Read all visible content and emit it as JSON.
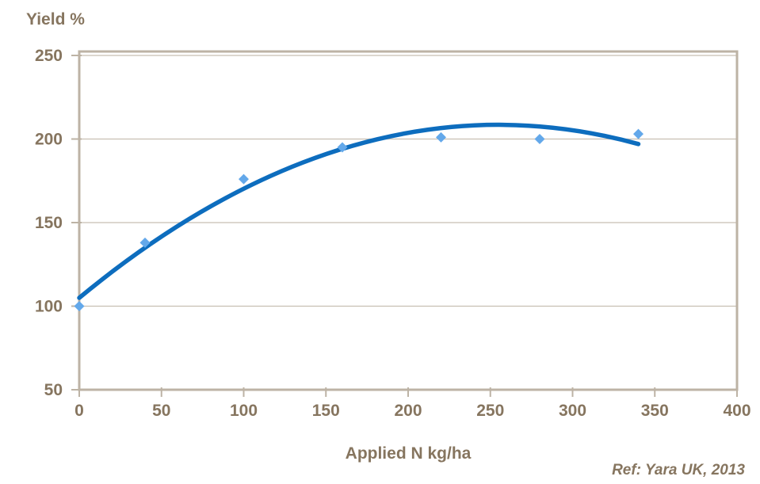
{
  "chart": {
    "y_axis_title": "Yield %",
    "x_axis_title": "Applied N kg/ha",
    "reference": "Ref: Yara UK, 2013"
  },
  "colors": {
    "label_brown": "#86755F",
    "axis_taupe": "#BDB3A5",
    "gridline": "#C8BFB2",
    "curve_blue": "#0D6DBE",
    "marker_blue": "#63A8EA",
    "background": "#FFFFFF"
  },
  "chart_data": {
    "type": "scatter",
    "title": "",
    "ylabel": "Yield %",
    "xlabel": "Applied N kg/ha",
    "annotation": "Ref: Yara UK, 2013",
    "xlim": [
      0,
      400
    ],
    "ylim": [
      50,
      250
    ],
    "x_ticks": [
      0,
      50,
      100,
      150,
      200,
      250,
      300,
      350,
      400
    ],
    "y_ticks": [
      50,
      100,
      150,
      200,
      250
    ],
    "grid": "horizontal-only",
    "legend": "none",
    "series": [
      {
        "name": "observed-yield-points",
        "kind": "scatter",
        "marker": "diamond",
        "points": [
          [
            0,
            100
          ],
          [
            40,
            138
          ],
          [
            100,
            176
          ],
          [
            160,
            195
          ],
          [
            220,
            201
          ],
          [
            280,
            200
          ],
          [
            340,
            203
          ]
        ]
      },
      {
        "name": "fitted-response-curve",
        "kind": "quadratic-curve",
        "x_range": [
          0,
          340
        ],
        "coefficients": {
          "a": 105,
          "b": 0.8118,
          "c": -0.0015917
        },
        "peak": [
          255,
          208.5
        ],
        "end_value": [
          340,
          197
        ]
      }
    ]
  }
}
